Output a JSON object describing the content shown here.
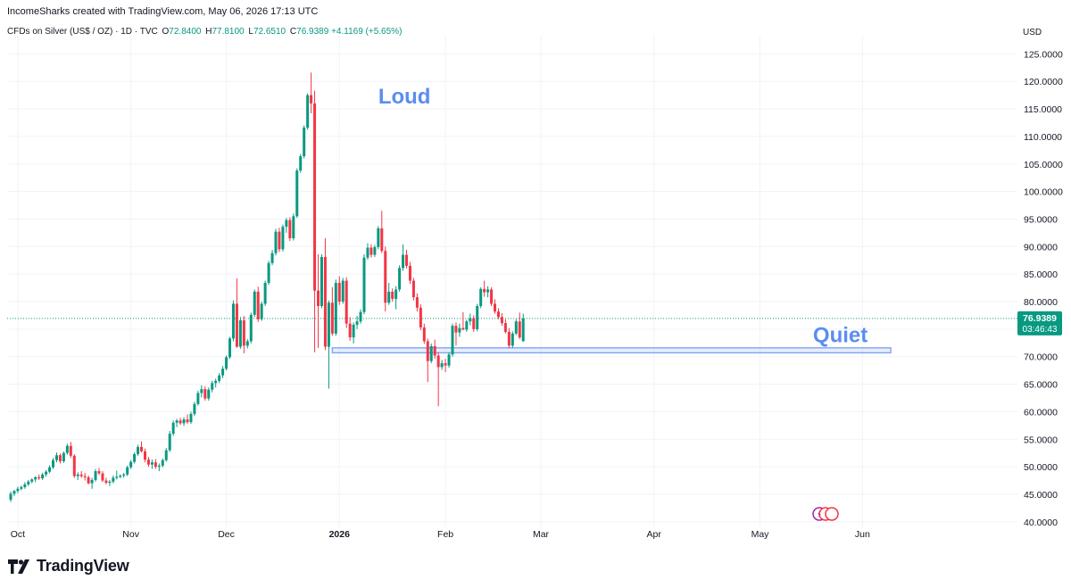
{
  "header": {
    "attribution": "IncomeSharks created with TradingView.com, May 06, 2026 17:13 UTC"
  },
  "legend": {
    "symbol": "CFDs on Silver (US$ / OZ) · 1D · TVC",
    "open_label": "O",
    "open": "72.8400",
    "high_label": "H",
    "high": "77.8100",
    "low_label": "L",
    "low": "72.6510",
    "close_label": "C",
    "close": "76.9389",
    "change": "+4.1169 (+5.65%)"
  },
  "currency": "USD",
  "brand": {
    "name": "TradingView"
  },
  "colors": {
    "up": "#089981",
    "down": "#f23645",
    "annotation": "#5b8def",
    "zone": "#7fa3f5"
  },
  "chart_data": {
    "type": "candlestick",
    "title": "",
    "ylim": [
      39,
      127
    ],
    "grid": true,
    "y_ticks": [
      "40.0000",
      "45.0000",
      "50.0000",
      "55.0000",
      "60.0000",
      "65.0000",
      "70.0000",
      "75.0000",
      "80.0000",
      "85.0000",
      "90.0000",
      "95.0000",
      "100.0000",
      "105.0000",
      "110.0000",
      "115.0000",
      "120.0000",
      "125.0000"
    ],
    "x_labels": [
      "Oct",
      "Nov",
      "Dec",
      "2026",
      "Feb",
      "Mar",
      "Apr",
      "May",
      "Jun"
    ],
    "x_label_values": [
      2,
      34,
      61,
      93,
      123,
      150,
      182,
      212,
      241
    ],
    "last_price_label": "76.9389",
    "countdown_label": "03:46:43",
    "annotations": [
      {
        "text": "Loud",
        "x": 104,
        "y": 116
      },
      {
        "text": "Quiet",
        "x": 227,
        "y": 72.6
      }
    ],
    "support_zone": {
      "x_start": 91,
      "x_end": 249,
      "y_low": 70.7,
      "y_high": 71.6
    },
    "last_price": 76.94,
    "candles": [
      [
        44.0,
        45.5,
        43.6,
        45.1
      ],
      [
        45.1,
        45.8,
        44.7,
        45.6
      ],
      [
        45.6,
        46.4,
        45.2,
        46.0
      ],
      [
        46.0,
        46.6,
        45.7,
        46.3
      ],
      [
        46.3,
        47.2,
        46.0,
        46.8
      ],
      [
        46.8,
        47.6,
        46.5,
        47.3
      ],
      [
        47.3,
        47.9,
        47.0,
        47.7
      ],
      [
        47.7,
        48.3,
        47.2,
        48.1
      ],
      [
        48.1,
        48.6,
        47.6,
        47.9
      ],
      [
        47.9,
        48.9,
        47.6,
        48.6
      ],
      [
        48.6,
        49.4,
        48.2,
        49.1
      ],
      [
        49.1,
        50.3,
        48.8,
        49.9
      ],
      [
        49.9,
        51.6,
        49.6,
        51.2
      ],
      [
        51.2,
        52.6,
        50.8,
        52.1
      ],
      [
        52.1,
        52.4,
        50.6,
        51.0
      ],
      [
        51.0,
        52.8,
        50.7,
        52.5
      ],
      [
        52.5,
        54.2,
        52.2,
        53.8
      ],
      [
        53.8,
        54.5,
        51.6,
        52.0
      ],
      [
        52.0,
        52.3,
        48.0,
        48.3
      ],
      [
        48.3,
        49.0,
        47.6,
        48.6
      ],
      [
        48.6,
        49.2,
        48.0,
        48.3
      ],
      [
        48.3,
        48.9,
        47.5,
        48.1
      ],
      [
        48.1,
        48.4,
        46.8,
        47.0
      ],
      [
        47.0,
        48.0,
        46.0,
        47.6
      ],
      [
        47.6,
        49.6,
        47.3,
        49.2
      ],
      [
        49.2,
        49.8,
        48.5,
        48.8
      ],
      [
        48.8,
        49.2,
        47.2,
        47.5
      ],
      [
        47.5,
        48.0,
        46.8,
        47.1
      ],
      [
        47.1,
        47.6,
        46.5,
        47.3
      ],
      [
        47.3,
        48.4,
        47.0,
        48.0
      ],
      [
        48.0,
        49.3,
        47.7,
        48.2
      ],
      [
        48.2,
        48.6,
        47.9,
        48.4
      ],
      [
        48.4,
        48.9,
        48.0,
        48.6
      ],
      [
        48.6,
        50.2,
        48.3,
        49.9
      ],
      [
        49.9,
        51.2,
        49.6,
        50.9
      ],
      [
        50.9,
        52.6,
        50.6,
        52.3
      ],
      [
        52.3,
        54.0,
        52.0,
        53.6
      ],
      [
        53.6,
        54.6,
        52.6,
        52.8
      ],
      [
        52.8,
        53.3,
        50.8,
        51.3
      ],
      [
        51.3,
        51.8,
        50.0,
        50.4
      ],
      [
        50.4,
        51.3,
        49.6,
        50.8
      ],
      [
        50.8,
        51.4,
        49.6,
        50.0
      ],
      [
        50.0,
        50.6,
        49.2,
        50.2
      ],
      [
        50.2,
        51.5,
        49.9,
        51.2
      ],
      [
        51.2,
        53.4,
        50.9,
        53.0
      ],
      [
        53.0,
        56.5,
        52.7,
        56.0
      ],
      [
        56.0,
        58.4,
        55.6,
        58.0
      ],
      [
        58.0,
        58.7,
        57.2,
        58.4
      ],
      [
        58.4,
        58.9,
        57.6,
        57.9
      ],
      [
        57.9,
        59.0,
        57.4,
        58.6
      ],
      [
        58.6,
        59.5,
        57.8,
        58.1
      ],
      [
        58.1,
        60.0,
        57.8,
        59.6
      ],
      [
        59.6,
        61.8,
        59.2,
        61.4
      ],
      [
        61.4,
        63.8,
        61.1,
        63.4
      ],
      [
        63.4,
        64.8,
        62.6,
        64.1
      ],
      [
        64.1,
        64.6,
        62.0,
        62.4
      ],
      [
        62.4,
        64.4,
        62.0,
        64.0
      ],
      [
        64.0,
        65.6,
        63.5,
        65.2
      ],
      [
        65.2,
        66.0,
        64.4,
        65.6
      ],
      [
        65.6,
        67.0,
        65.2,
        66.6
      ],
      [
        66.6,
        68.3,
        66.1,
        67.8
      ],
      [
        67.8,
        70.2,
        67.5,
        69.9
      ],
      [
        69.9,
        73.6,
        69.6,
        73.3
      ],
      [
        73.3,
        80.2,
        72.8,
        79.6
      ],
      [
        79.6,
        84.2,
        71.6,
        71.8
      ],
      [
        71.8,
        77.2,
        71.4,
        76.6
      ],
      [
        76.6,
        77.4,
        70.6,
        72.0
      ],
      [
        72.0,
        73.2,
        71.5,
        72.8
      ],
      [
        72.8,
        78.0,
        72.4,
        77.6
      ],
      [
        77.6,
        82.2,
        77.2,
        81.8
      ],
      [
        81.8,
        82.7,
        76.3,
        76.8
      ],
      [
        76.8,
        80.0,
        76.5,
        79.6
      ],
      [
        79.6,
        83.8,
        79.2,
        83.4
      ],
      [
        83.4,
        87.4,
        83.0,
        87.0
      ],
      [
        87.0,
        89.4,
        86.6,
        88.8
      ],
      [
        88.8,
        93.2,
        88.4,
        92.7
      ],
      [
        92.7,
        93.4,
        89.0,
        89.5
      ],
      [
        89.5,
        94.0,
        89.1,
        93.6
      ],
      [
        93.6,
        95.2,
        92.5,
        94.8
      ],
      [
        94.8,
        95.3,
        91.0,
        91.5
      ],
      [
        91.5,
        96.0,
        91.1,
        95.5
      ],
      [
        95.5,
        104.2,
        95.2,
        103.8
      ],
      [
        103.8,
        106.8,
        103.4,
        106.4
      ],
      [
        106.4,
        112.0,
        106.0,
        111.6
      ],
      [
        111.6,
        117.8,
        111.2,
        117.5
      ],
      [
        117.5,
        121.6,
        114.2,
        116.0
      ],
      [
        116.0,
        118.3,
        70.8,
        82.0
      ],
      [
        82.0,
        88.6,
        71.6,
        79.2
      ],
      [
        79.2,
        88.6,
        78.8,
        88.1
      ],
      [
        88.1,
        91.5,
        71.2,
        71.8
      ],
      [
        71.8,
        80.2,
        64.2,
        79.8
      ],
      [
        79.8,
        82.6,
        73.8,
        74.2
      ],
      [
        74.2,
        84.0,
        73.8,
        83.4
      ],
      [
        83.4,
        84.6,
        79.4,
        80.0
      ],
      [
        80.0,
        84.3,
        79.6,
        83.8
      ],
      [
        83.8,
        84.4,
        75.2,
        76.0
      ],
      [
        76.0,
        77.2,
        72.9,
        73.5
      ],
      [
        73.5,
        76.2,
        72.4,
        75.8
      ],
      [
        75.8,
        77.4,
        75.0,
        76.4
      ],
      [
        76.4,
        78.6,
        76.0,
        78.1
      ],
      [
        78.1,
        88.6,
        77.7,
        88.0
      ],
      [
        88.0,
        90.6,
        87.6,
        89.8
      ],
      [
        89.8,
        90.4,
        88.0,
        88.5
      ],
      [
        88.5,
        90.3,
        88.1,
        89.9
      ],
      [
        89.9,
        93.7,
        89.5,
        93.3
      ],
      [
        93.3,
        96.5,
        88.8,
        89.2
      ],
      [
        89.2,
        90.0,
        78.2,
        79.8
      ],
      [
        79.8,
        83.4,
        79.4,
        81.8
      ],
      [
        81.8,
        82.4,
        80.0,
        80.5
      ],
      [
        80.5,
        82.8,
        78.6,
        82.2
      ],
      [
        82.2,
        86.6,
        81.8,
        86.1
      ],
      [
        86.1,
        90.4,
        85.6,
        88.5
      ],
      [
        88.5,
        89.4,
        86.0,
        86.5
      ],
      [
        86.5,
        87.2,
        83.2,
        83.8
      ],
      [
        83.8,
        84.3,
        80.2,
        80.8
      ],
      [
        80.8,
        81.5,
        78.2,
        78.9
      ],
      [
        78.9,
        79.5,
        74.8,
        75.3
      ],
      [
        75.3,
        76.0,
        72.3,
        72.8
      ],
      [
        72.8,
        73.3,
        65.4,
        69.2
      ],
      [
        69.2,
        72.4,
        68.8,
        71.9
      ],
      [
        71.9,
        73.1,
        69.6,
        70.2
      ],
      [
        70.2,
        70.8,
        61.0,
        68.1
      ],
      [
        68.1,
        69.4,
        67.6,
        68.8
      ],
      [
        68.8,
        69.6,
        67.2,
        68.4
      ],
      [
        68.4,
        70.8,
        68.0,
        70.4
      ],
      [
        70.4,
        76.0,
        70.0,
        75.6
      ],
      [
        75.6,
        76.2,
        72.0,
        74.4
      ],
      [
        74.4,
        76.0,
        73.6,
        75.2
      ],
      [
        75.2,
        78.1,
        74.8,
        74.9
      ],
      [
        74.9,
        76.7,
        74.5,
        76.4
      ],
      [
        76.4,
        77.8,
        75.7,
        77.0
      ],
      [
        77.0,
        77.5,
        74.5,
        75.0
      ],
      [
        75.0,
        79.6,
        74.6,
        79.2
      ],
      [
        79.2,
        82.6,
        78.8,
        82.3
      ],
      [
        82.3,
        83.8,
        80.9,
        81.7
      ],
      [
        81.7,
        82.8,
        80.8,
        82.2
      ],
      [
        82.2,
        82.6,
        79.2,
        79.6
      ],
      [
        79.6,
        80.4,
        77.8,
        78.2
      ],
      [
        78.2,
        78.8,
        76.8,
        77.2
      ],
      [
        77.2,
        77.9,
        75.6,
        76.1
      ],
      [
        76.1,
        76.8,
        74.2,
        74.5
      ],
      [
        74.5,
        75.2,
        71.5,
        72.0
      ],
      [
        72.0,
        74.6,
        71.6,
        74.2
      ],
      [
        74.2,
        76.8,
        73.9,
        76.4
      ],
      [
        76.4,
        78.0,
        73.2,
        73.5
      ],
      [
        72.84,
        77.81,
        72.651,
        76.9389
      ]
    ]
  }
}
